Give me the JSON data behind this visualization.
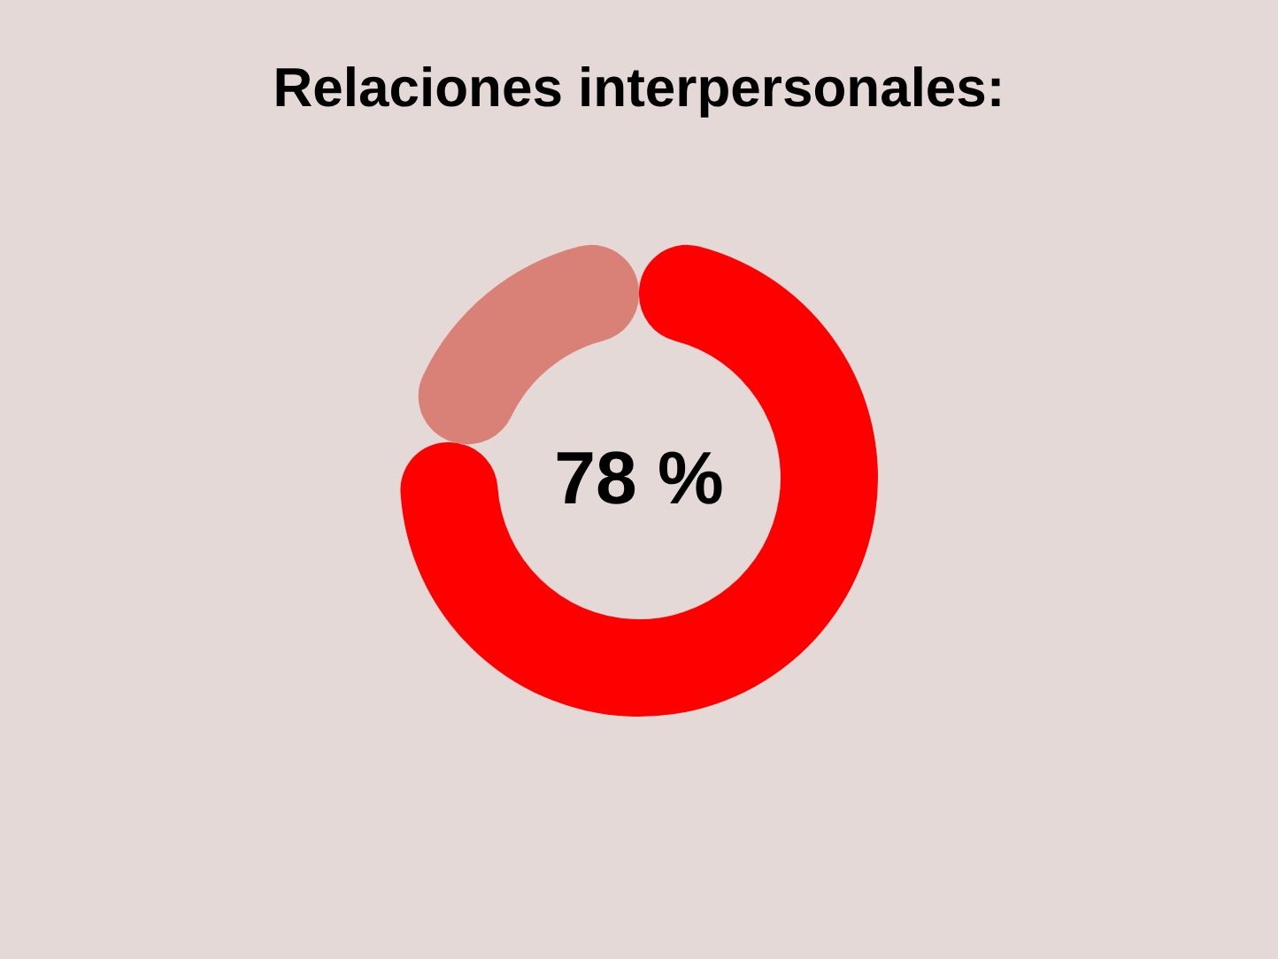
{
  "chart_data": {
    "type": "donut",
    "title": "Relaciones interpersonales:",
    "categories": [
      null,
      null
    ],
    "values": [
      78,
      22
    ],
    "colors": [
      "#ff0000",
      "#d98077"
    ],
    "value_labels": [
      "78 %",
      null
    ]
  }
}
